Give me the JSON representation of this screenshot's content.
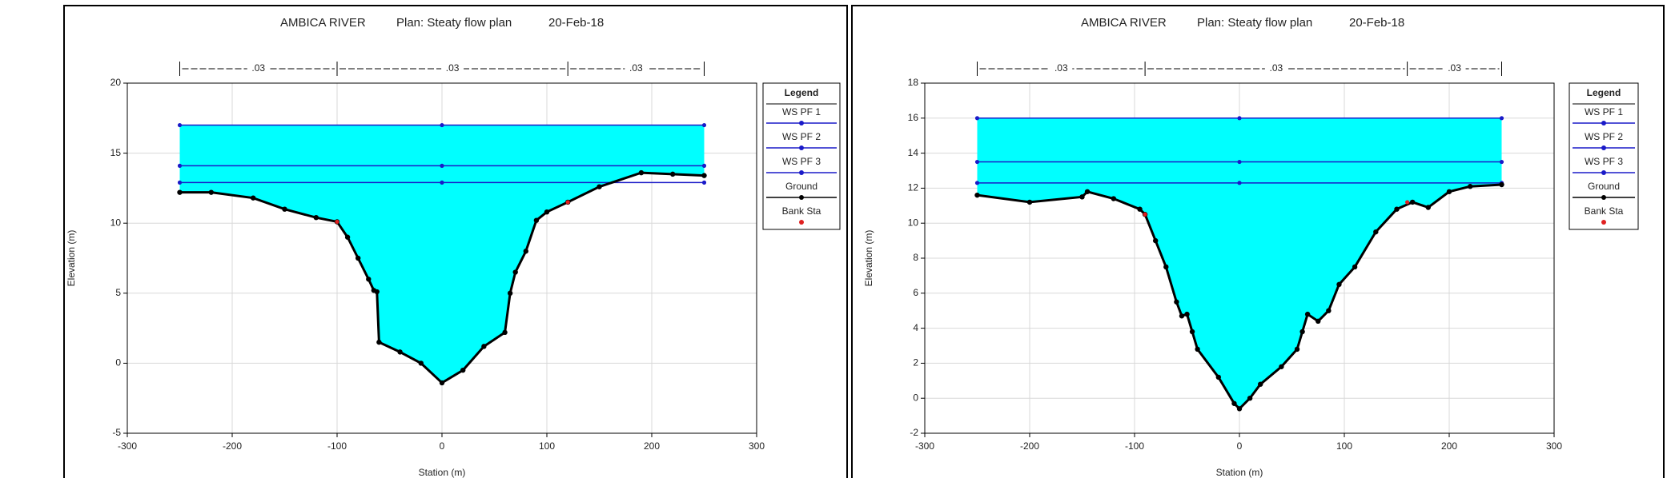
{
  "chart_data": [
    {
      "type": "line",
      "title": "AMBICA RIVER",
      "plan": "Plan: Steaty flow plan",
      "date": "20-Feb-18",
      "xlabel": "Station (m)",
      "ylabel": "Elevation (m)",
      "xlim": [
        -300,
        300
      ],
      "xticks": [
        -300,
        -200,
        -100,
        0,
        100,
        200,
        300
      ],
      "ylim": [
        -5,
        20
      ],
      "yticks": [
        -5,
        0,
        5,
        10,
        15,
        20
      ],
      "grid": true,
      "legend_title": "Legend",
      "manning": {
        "labels": [
          ".03",
          ".03",
          ".03"
        ],
        "breaks": [
          -250,
          -100,
          120,
          250
        ]
      },
      "series": [
        {
          "name": "WS PF 1",
          "color": "#1a1ac8",
          "fill": "#00ffff",
          "x": [
            -250,
            0,
            250
          ],
          "values": [
            17,
            17,
            17
          ]
        },
        {
          "name": "WS PF 2",
          "color": "#1a1ac8",
          "x": [
            -250,
            0,
            250
          ],
          "values": [
            14.1,
            14.1,
            14.1
          ]
        },
        {
          "name": "WS PF 3",
          "color": "#1a1ac8",
          "x": [
            -250,
            0,
            250
          ],
          "values": [
            12.9,
            12.9,
            12.9
          ]
        },
        {
          "name": "Ground",
          "color": "#000000",
          "x": [
            -250,
            -220,
            -180,
            -150,
            -120,
            -100,
            -90,
            -80,
            -70,
            -65,
            -62,
            -60,
            -40,
            -20,
            0,
            20,
            40,
            60,
            65,
            70,
            80,
            90,
            100,
            120,
            150,
            190,
            220,
            250
          ],
          "values": [
            12.2,
            12.2,
            11.8,
            11,
            10.4,
            10.1,
            9,
            7.5,
            6,
            5.2,
            5.1,
            1.5,
            0.8,
            0,
            -1.4,
            -0.5,
            1.2,
            2.2,
            5,
            6.5,
            8,
            10.2,
            10.8,
            11.5,
            12.6,
            13.6,
            13.5,
            13.4
          ]
        },
        {
          "name": "Bank Sta",
          "color": "#e02020",
          "line": false,
          "x": [
            -100,
            120
          ],
          "values": [
            10.1,
            11.5
          ]
        }
      ]
    },
    {
      "type": "line",
      "title": "AMBICA RIVER",
      "plan": "Plan: Steaty flow plan",
      "date": "20-Feb-18",
      "xlabel": "Station (m)",
      "ylabel": "Elevation (m)",
      "xlim": [
        -300,
        300
      ],
      "xticks": [
        -300,
        -200,
        -100,
        0,
        100,
        200,
        300
      ],
      "ylim": [
        -2,
        18
      ],
      "yticks": [
        -2,
        0,
        2,
        4,
        6,
        8,
        10,
        12,
        14,
        16,
        18
      ],
      "grid": true,
      "legend_title": "Legend",
      "manning": {
        "labels": [
          ".03",
          ".03",
          ".03"
        ],
        "breaks": [
          -250,
          -90,
          160,
          250
        ]
      },
      "series": [
        {
          "name": "WS PF 1",
          "color": "#1a1ac8",
          "fill": "#00ffff",
          "x": [
            -250,
            0,
            250
          ],
          "values": [
            16,
            16,
            16
          ]
        },
        {
          "name": "WS PF 2",
          "color": "#1a1ac8",
          "x": [
            -250,
            0,
            250
          ],
          "values": [
            13.5,
            13.5,
            13.5
          ]
        },
        {
          "name": "WS PF 3",
          "color": "#1a1ac8",
          "x": [
            -250,
            0,
            250
          ],
          "values": [
            12.3,
            12.3,
            12.3
          ]
        },
        {
          "name": "Ground",
          "color": "#000000",
          "x": [
            -250,
            -200,
            -150,
            -145,
            -120,
            -95,
            -90,
            -80,
            -70,
            -60,
            -55,
            -50,
            -45,
            -40,
            -20,
            -5,
            0,
            10,
            20,
            40,
            55,
            60,
            65,
            75,
            85,
            95,
            110,
            130,
            150,
            165,
            180,
            200,
            220,
            250
          ],
          "values": [
            11.6,
            11.2,
            11.5,
            11.8,
            11.4,
            10.8,
            10.5,
            9,
            7.5,
            5.5,
            4.7,
            4.8,
            3.8,
            2.8,
            1.2,
            -0.3,
            -0.6,
            0,
            0.8,
            1.8,
            2.8,
            3.8,
            4.8,
            4.4,
            5,
            6.5,
            7.5,
            9.5,
            10.8,
            11.2,
            10.9,
            11.8,
            12.1,
            12.2
          ]
        },
        {
          "name": "Bank Sta",
          "color": "#e02020",
          "line": false,
          "x": [
            -90,
            160
          ],
          "values": [
            10.5,
            11.2
          ]
        }
      ]
    }
  ]
}
